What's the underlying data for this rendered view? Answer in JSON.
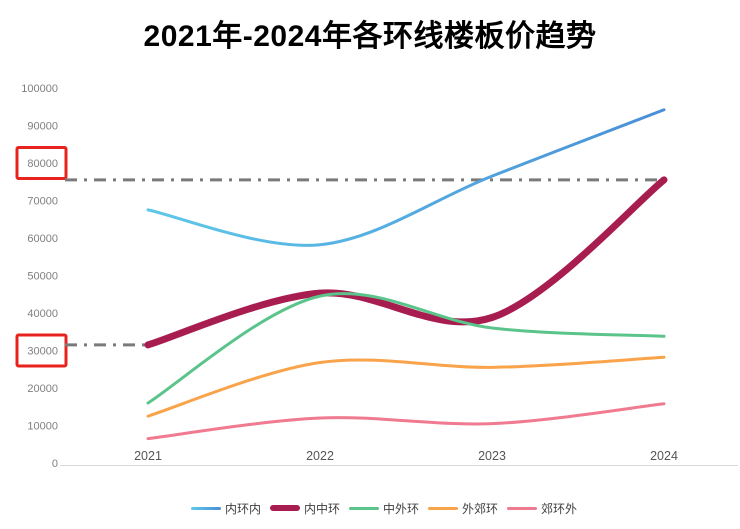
{
  "title": "2021年-2024年各环线楼板价趋势",
  "chart_data": {
    "type": "line",
    "title": "2021年-2024年各环线楼板价趋势",
    "x": [
      "2021",
      "2022",
      "2023",
      "2024"
    ],
    "xlabel": "",
    "ylabel": "",
    "ylim": [
      0,
      100000
    ],
    "ytick_step": 10000,
    "yticks": [
      0,
      10000,
      20000,
      30000,
      40000,
      50000,
      60000,
      70000,
      80000,
      90000,
      100000
    ],
    "grid": false,
    "smooth": true,
    "legend_position": "bottom",
    "series": [
      {
        "name": "内环内",
        "color": "#5ec8e8",
        "color_end": "#4a8fd8",
        "width": 3,
        "values": [
          67500,
          58200,
          76500,
          94200
        ]
      },
      {
        "name": "内中环",
        "color": "#a81d4f",
        "width": 7,
        "values": [
          31500,
          45300,
          38800,
          75500
        ]
      },
      {
        "name": "中外环",
        "color": "#5bc48b",
        "width": 3,
        "values": [
          16000,
          44500,
          36000,
          33800
        ]
      },
      {
        "name": "外郊环",
        "color": "#f9a34a",
        "width": 3,
        "values": [
          12500,
          26800,
          25500,
          28200
        ]
      },
      {
        "name": "郊环外",
        "color": "#f07b90",
        "width": 3,
        "values": [
          6500,
          12000,
          10500,
          15800
        ]
      }
    ],
    "reference_lines": [
      {
        "value": 75500,
        "to_x": "2024",
        "style": "dash-dot",
        "color": "#7a7a7a"
      },
      {
        "value": 31500,
        "to_x": "2021",
        "style": "dash-dot",
        "color": "#7a7a7a"
      }
    ],
    "highlighted_yticks": [
      {
        "value": 80000,
        "box_color": "#e8231d"
      },
      {
        "value": 30000,
        "box_color": "#e8231d"
      }
    ],
    "axis_colors": {
      "tick_label": "#7f7f7f",
      "x_label": "#555555",
      "axis_line": "#d9d9d9"
    }
  }
}
